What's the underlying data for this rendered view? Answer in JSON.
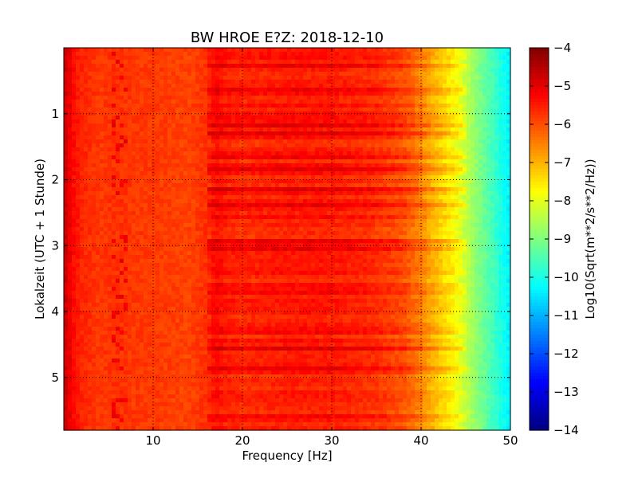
{
  "chart_data": {
    "type": "heatmap",
    "title": "BW HROE E?Z: 2018-12-10",
    "xlabel": "Frequency [Hz]",
    "ylabel": "Lokalzeit (UTC + 1 Stunde)",
    "colorbar_label": "Log10(Sqrt(m**2/s**2/Hz))",
    "x_range": [
      0,
      50
    ],
    "y_range": [
      0,
      5.8
    ],
    "y_inverted": true,
    "x_ticks": [
      10,
      20,
      30,
      40,
      50
    ],
    "y_ticks": [
      1,
      2,
      3,
      4,
      5
    ],
    "color_range": [
      -14,
      -4
    ],
    "colorbar_ticks": [
      -4,
      -5,
      -6,
      -7,
      -8,
      -9,
      -10,
      -11,
      -12,
      -13,
      -14
    ],
    "colormap": "jet",
    "grid": true,
    "spectrum_profile": {
      "frequency_hz": [
        0,
        0.5,
        1,
        2,
        4,
        6,
        8,
        10,
        14,
        16,
        17,
        18,
        20,
        25,
        30,
        35,
        38,
        40,
        41,
        42,
        43,
        44,
        45,
        46,
        47,
        48,
        49,
        50
      ],
      "level": [
        -4.7,
        -5.0,
        -5.3,
        -5.6,
        -5.8,
        -5.7,
        -5.8,
        -5.8,
        -5.9,
        -5.7,
        -5.3,
        -5.5,
        -5.6,
        -5.5,
        -5.5,
        -5.7,
        -6.0,
        -6.5,
        -6.9,
        -7.2,
        -7.5,
        -7.8,
        -8.3,
        -8.8,
        -9.2,
        -9.6,
        -10.0,
        -10.4
      ]
    }
  }
}
